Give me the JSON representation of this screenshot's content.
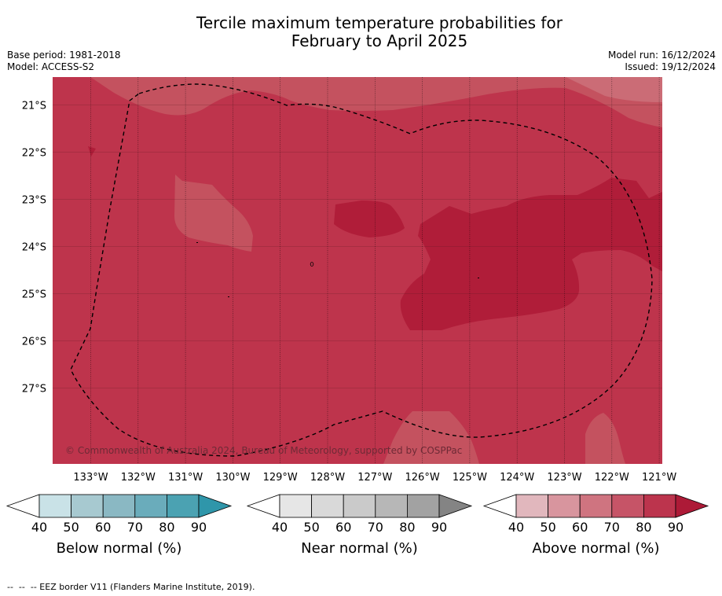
{
  "header": {
    "title_line1": "Tercile maximum temperature probabilities for",
    "title_line2": "February to April 2025",
    "base_period": "Base period: 1981-2018",
    "model": "Model: ACCESS-S2",
    "model_run": "Model run: 16/12/2024",
    "issued": "Issued: 19/12/2024"
  },
  "map": {
    "lon_ticks": [
      "133°W",
      "132°W",
      "131°W",
      "130°W",
      "129°W",
      "128°W",
      "127°W",
      "126°W",
      "125°W",
      "124°W",
      "123°W",
      "122°W",
      "121°W"
    ],
    "lat_ticks": [
      "21°S",
      "22°S",
      "23°S",
      "24°S",
      "25°S",
      "26°S",
      "27°S"
    ],
    "copyright": "© Commonwealth of Australia 2024, Bureau of Meteorology, supported by COSPPac",
    "colors": {
      "base": "#BE344C",
      "dark": "#B01D39",
      "light": "#C4525F",
      "lighter": "#CB6C76",
      "eez_line": "#000000"
    }
  },
  "colorbars": [
    {
      "label": "Below normal (%)",
      "ticks": [
        "40",
        "50",
        "60",
        "70",
        "80",
        "90"
      ],
      "colors": [
        "#ffffff",
        "#C9E2E7",
        "#A7C9D0",
        "#8AB8C3",
        "#6AACBB",
        "#4BA2B2",
        "#2F96AA"
      ]
    },
    {
      "label": "Near normal (%)",
      "ticks": [
        "40",
        "50",
        "60",
        "70",
        "80",
        "90"
      ],
      "colors": [
        "#ffffff",
        "#E6E6E6",
        "#D9D9D9",
        "#CACACA",
        "#B7B7B7",
        "#A2A2A2",
        "#848484"
      ]
    },
    {
      "label": "Above normal (%)",
      "ticks": [
        "40",
        "50",
        "60",
        "70",
        "80",
        "90"
      ],
      "colors": [
        "#ffffff",
        "#E1B7BD",
        "#D8959E",
        "#CF7480",
        "#C65467",
        "#BC344D",
        "#AD1A37"
      ]
    }
  ],
  "footer": "--  --  -- EEZ border V11 (Flanders Marine Institute, 2019)."
}
